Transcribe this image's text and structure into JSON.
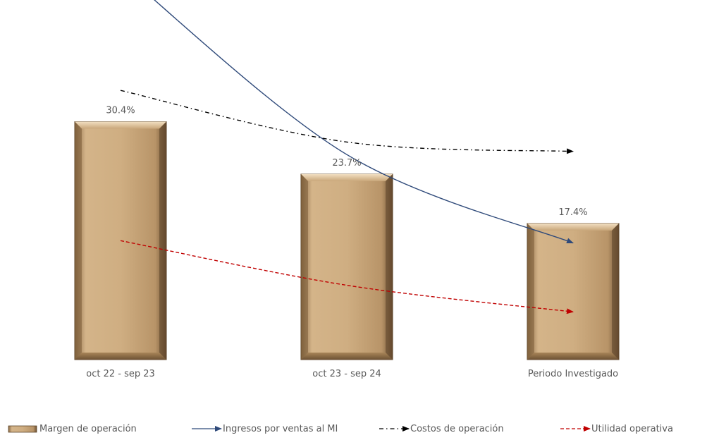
{
  "chart_data": {
    "type": "bar",
    "categories": [
      "oct 22 - sep 23",
      "oct 23 - sep 24",
      "Periodo Investigado"
    ],
    "series": [
      {
        "name": "Margen de operación",
        "kind": "bar",
        "values": [
          30.4,
          23.7,
          17.4
        ],
        "labels": [
          "30.4%",
          "23.7%",
          "17.4%"
        ],
        "color": "#c8a97e"
      },
      {
        "name": "Ingresos por ventas al MI",
        "kind": "line",
        "style": "solid",
        "values": [
          49.7,
          26.2,
          14.9
        ],
        "color": "#2f4a7a"
      },
      {
        "name": "Costos de operación",
        "kind": "line",
        "style": "dash-dot",
        "values": [
          34.4,
          27.8,
          26.6
        ],
        "color": "#000000"
      },
      {
        "name": "Utilidad operativa",
        "kind": "line",
        "style": "dashed",
        "values": [
          15.2,
          9.5,
          6.1
        ],
        "color": "#c00000"
      }
    ],
    "ylim": [
      0,
      50
    ],
    "grid": false,
    "legend_position": "bottom"
  }
}
